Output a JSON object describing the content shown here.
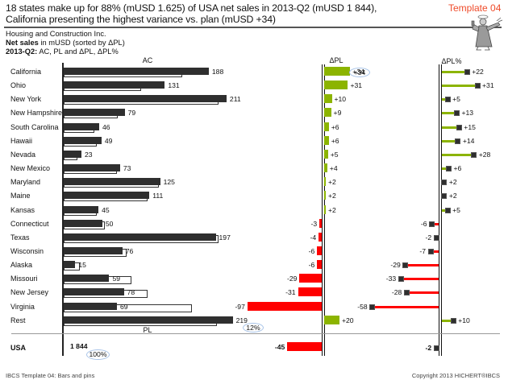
{
  "header": {
    "title_line1": "18 states make up for 88% (mUSD 1.625) of USA net sales in 2013-Q2 (mUSD 1 844),",
    "title_line2": "California presenting the highest variance vs. plan (mUSD +34)",
    "template_tag": "Template 04",
    "company": "Housing and Construction Inc.",
    "measure_bold": "Net sales",
    "measure_rest": " in mUSD (sorted by ΔPL)",
    "period_bold": "2013-Q2:",
    "period_rest": " AC, PL and ΔPL, ΔPL%",
    "mascot_icon": "angel-figure-icon"
  },
  "columns": {
    "ac": "AC",
    "pl": "PL",
    "dpl": "ΔPL",
    "dplp": "ΔPL%"
  },
  "table": {
    "rows": [
      {
        "name": "California",
        "ac_label": "188",
        "dpl_label": "+34",
        "dplp_label": "+22"
      },
      {
        "name": "Ohio",
        "ac_label": "131",
        "dpl_label": "+31",
        "dplp_label": "+31"
      },
      {
        "name": "New York",
        "ac_label": "211",
        "dpl_label": "+10",
        "dplp_label": "+5"
      },
      {
        "name": "New Hampshire",
        "ac_label": "79",
        "dpl_label": "+9",
        "dplp_label": "+13"
      },
      {
        "name": "South Carolina",
        "ac_label": "46",
        "dpl_label": "+6",
        "dplp_label": "+15"
      },
      {
        "name": "Hawaii",
        "ac_label": "49",
        "dpl_label": "+6",
        "dplp_label": "+14"
      },
      {
        "name": "Nevada",
        "ac_label": "23",
        "dpl_label": "+5",
        "dplp_label": "+28"
      },
      {
        "name": "New Mexico",
        "ac_label": "73",
        "dpl_label": "+4",
        "dplp_label": "+6"
      },
      {
        "name": "Maryland",
        "ac_label": "125",
        "dpl_label": "+2",
        "dplp_label": "+2"
      },
      {
        "name": "Maine",
        "ac_label": "111",
        "dpl_label": "+2",
        "dplp_label": "+2"
      },
      {
        "name": "Kansas",
        "ac_label": "45",
        "dpl_label": "+2",
        "dplp_label": "+5"
      },
      {
        "name": "Connecticut",
        "ac_label": "50",
        "dpl_label": "-3",
        "dplp_label": "-6"
      },
      {
        "name": "Texas",
        "ac_label": "197",
        "dpl_label": "-4",
        "dplp_label": "-2"
      },
      {
        "name": "Wisconsin",
        "ac_label": "76",
        "dpl_label": "-6",
        "dplp_label": "-7"
      },
      {
        "name": "Alaska",
        "ac_label": "15",
        "dpl_label": "-6",
        "dplp_label": "-29"
      },
      {
        "name": "Missouri",
        "ac_label": "59",
        "dpl_label": "-29",
        "dplp_label": "-33"
      },
      {
        "name": "New Jersey",
        "ac_label": "78",
        "dpl_label": "-31",
        "dplp_label": "-28"
      },
      {
        "name": "Virginia",
        "ac_label": "69",
        "dpl_label": "-97",
        "dplp_label": "-58"
      },
      {
        "name": "Rest",
        "ac_label": "219",
        "dpl_label": "+20",
        "dplp_label": "+10"
      }
    ],
    "total": {
      "name": "USA",
      "ac_label": "1 844",
      "dpl_label": "-45",
      "dplp_label": "-2"
    }
  },
  "annotations": {
    "rest_share": "12%",
    "total_share": "100%",
    "highlight_variance": "+34"
  },
  "footer": {
    "left": "IBCS Template 04: Bars and pins",
    "right": "Copyright 2013 HICHERT®IBCS"
  },
  "colors": {
    "ac_bar": "#2f2f2f",
    "positive": "#8cb400",
    "negative": "#ff0000",
    "template_tag": "#ef4b2a",
    "highlight_ellipse": "#a9c4e8"
  },
  "chart_data": {
    "type": "bar",
    "title": "Net sales in mUSD (sorted by ΔPL) — 2013-Q2: AC, PL and ΔPL, ΔPL%",
    "categories": [
      "California",
      "Ohio",
      "New York",
      "New Hampshire",
      "South Carolina",
      "Hawaii",
      "Nevada",
      "New Mexico",
      "Maryland",
      "Maine",
      "Kansas",
      "Connecticut",
      "Texas",
      "Wisconsin",
      "Alaska",
      "Missouri",
      "New Jersey",
      "Virginia",
      "Rest"
    ],
    "series": [
      {
        "name": "AC",
        "values": [
          188,
          131,
          211,
          79,
          46,
          49,
          23,
          73,
          125,
          111,
          45,
          50,
          197,
          76,
          15,
          59,
          78,
          69,
          219
        ]
      },
      {
        "name": "PL",
        "values": [
          154,
          100,
          201,
          70,
          40,
          43,
          18,
          69,
          123,
          109,
          43,
          53,
          201,
          82,
          21,
          88,
          109,
          166,
          199
        ]
      },
      {
        "name": "ΔPL",
        "values": [
          34,
          31,
          10,
          9,
          6,
          6,
          5,
          4,
          2,
          2,
          2,
          -3,
          -4,
          -6,
          -6,
          -29,
          -31,
          -97,
          20
        ]
      },
      {
        "name": "ΔPL%",
        "values": [
          22,
          31,
          5,
          13,
          15,
          14,
          28,
          6,
          2,
          2,
          5,
          -6,
          -2,
          -7,
          -29,
          -33,
          -28,
          -58,
          10
        ]
      }
    ],
    "total": {
      "label": "USA",
      "AC": 1844,
      "ΔPL": -45,
      "ΔPL%": -2
    },
    "panels": [
      {
        "name": "AC",
        "type": "bar",
        "orientation": "horizontal",
        "overlay": "PL outlined bar"
      },
      {
        "name": "ΔPL",
        "type": "bar",
        "orientation": "horizontal",
        "colors": {
          "positive": "#8cb400",
          "negative": "#ff0000"
        }
      },
      {
        "name": "ΔPL%",
        "type": "pin",
        "orientation": "horizontal",
        "colors": {
          "positive": "#8cb400",
          "negative": "#ff0000"
        }
      }
    ],
    "annotations": [
      "Rest share 12%",
      "USA 100%",
      "California +34 highlighted"
    ],
    "xlabel": "",
    "ylabel": "",
    "grid": false,
    "legend": "column headers (AC, ΔPL, ΔPL%)"
  }
}
